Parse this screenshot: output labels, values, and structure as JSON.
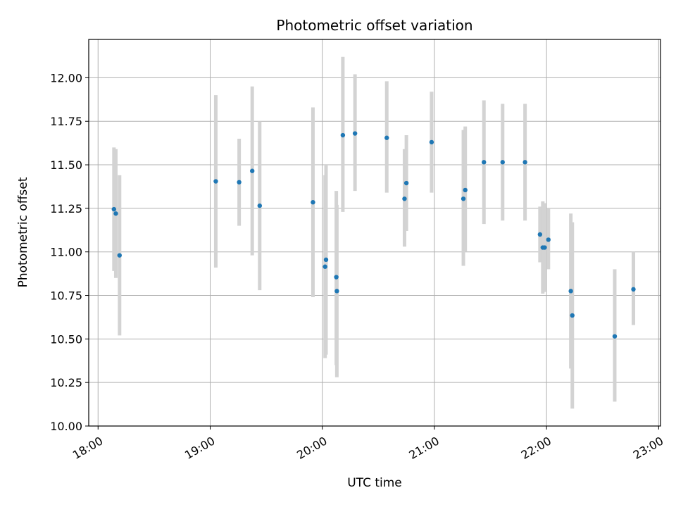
{
  "chart_data": {
    "type": "scatter",
    "title": "Photometric offset variation",
    "xlabel": "UTC time",
    "ylabel": "Photometric offset",
    "x_axis_kind": "time",
    "xlim": [
      "17:55",
      "23:01"
    ],
    "ylim": [
      10.0,
      12.22
    ],
    "grid": true,
    "x_ticks": [
      "18:00",
      "19:00",
      "20:00",
      "21:00",
      "22:00",
      "23:00"
    ],
    "y_ticks": [
      "10.00",
      "10.25",
      "10.50",
      "10.75",
      "11.00",
      "11.25",
      "11.50",
      "11.75",
      "12.00"
    ],
    "marker_color": "#1f77b4",
    "errorbar_color": "#d3d3d3",
    "points": [
      {
        "x": "18:08.5",
        "y": 11.245,
        "lo": 10.89,
        "hi": 11.6
      },
      {
        "x": "18:09.5",
        "y": 11.22,
        "lo": 10.85,
        "hi": 11.59
      },
      {
        "x": "18:11.5",
        "y": 10.98,
        "lo": 10.52,
        "hi": 11.44
      },
      {
        "x": "19:03",
        "y": 11.405,
        "lo": 10.91,
        "hi": 11.9
      },
      {
        "x": "19:15.5",
        "y": 11.4,
        "lo": 11.15,
        "hi": 11.65
      },
      {
        "x": "19:22.5",
        "y": 11.465,
        "lo": 10.98,
        "hi": 11.95
      },
      {
        "x": "19:26.5",
        "y": 11.265,
        "lo": 10.78,
        "hi": 11.75
      },
      {
        "x": "19:55",
        "y": 11.285,
        "lo": 10.74,
        "hi": 11.83
      },
      {
        "x": "20:01.5",
        "y": 10.915,
        "lo": 10.39,
        "hi": 11.44
      },
      {
        "x": "20:02",
        "y": 10.955,
        "lo": 10.41,
        "hi": 11.5
      },
      {
        "x": "20:07.5",
        "y": 10.855,
        "lo": 10.35,
        "hi": 11.35
      },
      {
        "x": "20:07.8",
        "y": 10.775,
        "lo": 10.28,
        "hi": 11.27
      },
      {
        "x": "20:11",
        "y": 11.67,
        "lo": 11.23,
        "hi": 12.12
      },
      {
        "x": "20:17.5",
        "y": 11.68,
        "lo": 11.35,
        "hi": 12.02
      },
      {
        "x": "20:34.5",
        "y": 11.655,
        "lo": 11.34,
        "hi": 11.98
      },
      {
        "x": "20:44",
        "y": 11.305,
        "lo": 11.03,
        "hi": 11.59
      },
      {
        "x": "20:45",
        "y": 11.395,
        "lo": 11.12,
        "hi": 11.67
      },
      {
        "x": "20:58.5",
        "y": 11.63,
        "lo": 11.34,
        "hi": 11.92
      },
      {
        "x": "21:15.5",
        "y": 11.305,
        "lo": 10.92,
        "hi": 11.7
      },
      {
        "x": "21:16.5",
        "y": 11.355,
        "lo": 11.0,
        "hi": 11.72
      },
      {
        "x": "21:26.5",
        "y": 11.515,
        "lo": 11.16,
        "hi": 11.87
      },
      {
        "x": "21:36.5",
        "y": 11.515,
        "lo": 11.18,
        "hi": 11.85
      },
      {
        "x": "21:48.5",
        "y": 11.515,
        "lo": 11.18,
        "hi": 11.85
      },
      {
        "x": "21:56.5",
        "y": 11.1,
        "lo": 10.94,
        "hi": 11.26
      },
      {
        "x": "21:58",
        "y": 11.025,
        "lo": 10.76,
        "hi": 11.29
      },
      {
        "x": "21:59",
        "y": 11.025,
        "lo": 10.77,
        "hi": 11.28
      },
      {
        "x": "22:01",
        "y": 11.07,
        "lo": 10.9,
        "hi": 11.25
      },
      {
        "x": "22:13",
        "y": 10.775,
        "lo": 10.33,
        "hi": 11.22
      },
      {
        "x": "22:13.8",
        "y": 10.635,
        "lo": 10.1,
        "hi": 11.17
      },
      {
        "x": "22:36.5",
        "y": 10.515,
        "lo": 10.14,
        "hi": 10.9
      },
      {
        "x": "22:46.5",
        "y": 10.785,
        "lo": 10.58,
        "hi": 11.0
      }
    ]
  }
}
